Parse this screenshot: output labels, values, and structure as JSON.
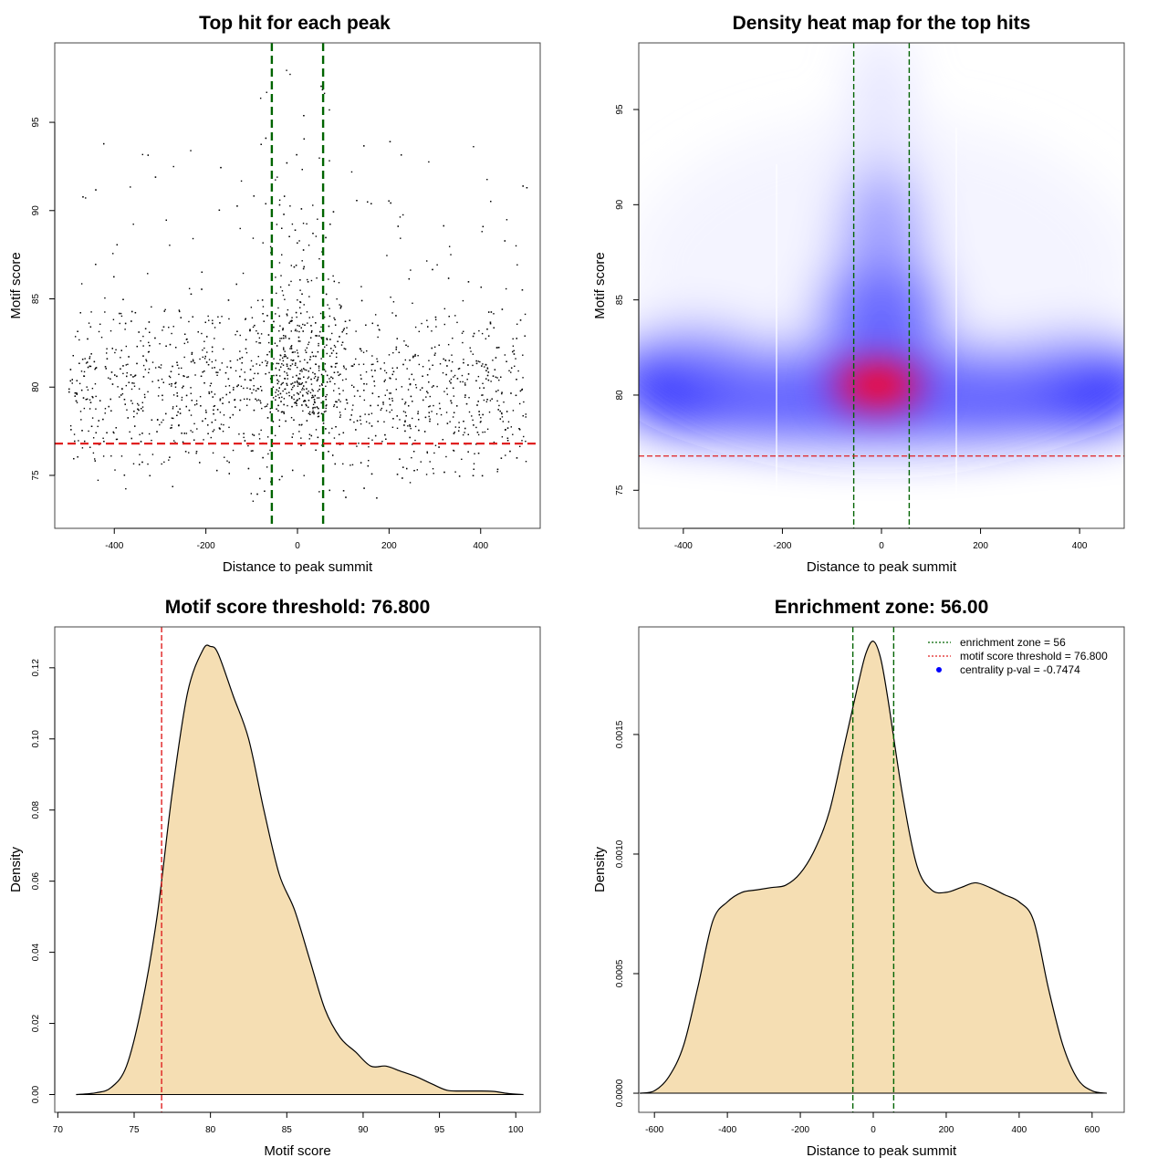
{
  "panels": [
    {
      "title": "Top hit for each peak",
      "xlabel": "Distance to peak summit",
      "ylabel": "Motif score"
    },
    {
      "title": "Density heat map for the top hits",
      "xlabel": "Distance to peak summit",
      "ylabel": "Motif score"
    },
    {
      "title": "Motif score threshold: 76.800",
      "xlabel": "Motif score",
      "ylabel": "Density"
    },
    {
      "title": "Enrichment zone: 56.00",
      "xlabel": "Distance to peak summit",
      "ylabel": "Density",
      "legend": [
        {
          "label": "enrichment zone = 56",
          "color": "#006400",
          "symbol": "dotted-line"
        },
        {
          "label": "motif score threshold = 76.800",
          "color": "#e02020",
          "symbol": "dotted-line"
        },
        {
          "label": "centrality p-val = -0.7474",
          "color": "#0000ff",
          "symbol": "dot"
        }
      ]
    }
  ],
  "colors": {
    "threshold_line": "#e02020",
    "zone_line": "#006400",
    "density_fill": "#f5deb3",
    "heat_low": "#0000ff",
    "heat_high": "#ff0000"
  },
  "chart_data": [
    {
      "type": "scatter",
      "title": "Top hit for each peak",
      "xlabel": "Distance to peak summit",
      "ylabel": "Motif score",
      "xlim": [
        -530,
        530
      ],
      "ylim": [
        72,
        99.5
      ],
      "x_ticks": [
        -400,
        -200,
        0,
        200,
        400
      ],
      "y_ticks": [
        75,
        80,
        85,
        90,
        95
      ],
      "n_points": 2400,
      "point_distribution": "uniform x over [-500, 500]; scores skewed, mode near 80; central (|x|<56) points reach higher scores up to ~98",
      "reference_lines": {
        "vertical": [
          -56,
          56
        ],
        "horizontal": [
          76.8
        ]
      },
      "grid": false
    },
    {
      "type": "heatmap",
      "title": "Density heat map for the top hits",
      "xlabel": "Distance to peak summit",
      "ylabel": "Motif score",
      "xlim": [
        -490,
        490
      ],
      "ylim": [
        73,
        98.5
      ],
      "x_ticks": [
        -400,
        -200,
        0,
        200,
        400
      ],
      "y_ticks": [
        75,
        80,
        85,
        90,
        95
      ],
      "hotspot": {
        "x": 0,
        "y": 80.5
      },
      "colormap": [
        "white",
        "blue",
        "red"
      ],
      "reference_lines": {
        "vertical": [
          -56,
          56
        ],
        "horizontal": [
          76.8
        ]
      },
      "grid": false
    },
    {
      "type": "area",
      "title": "Motif score threshold: 76.800",
      "xlabel": "Motif score",
      "ylabel": "Density",
      "xlim": [
        69.8,
        101.6
      ],
      "ylim": [
        -0.005,
        0.1315
      ],
      "x_ticks": [
        70,
        75,
        80,
        85,
        90,
        95,
        100
      ],
      "y_ticks": [
        0.0,
        0.02,
        0.04,
        0.06,
        0.08,
        0.1,
        0.12
      ],
      "y_tick_labels": [
        "0.00",
        "0.02",
        "0.04",
        "0.06",
        "0.08",
        "0.10",
        "0.12"
      ],
      "x": [
        71.2,
        72.5,
        73.5,
        74.5,
        75.5,
        76.5,
        77.5,
        78.5,
        79.5,
        80,
        80.5,
        81.5,
        82.5,
        83.5,
        84.5,
        85.5,
        86.5,
        87.5,
        88.5,
        89.5,
        90.5,
        91.5,
        92.5,
        93.5,
        94.5,
        95.5,
        96.5,
        97.5,
        98.5,
        99.5,
        100.5
      ],
      "y": [
        0.0,
        0.0005,
        0.002,
        0.008,
        0.025,
        0.05,
        0.085,
        0.113,
        0.125,
        0.126,
        0.124,
        0.112,
        0.1,
        0.08,
        0.062,
        0.052,
        0.038,
        0.024,
        0.016,
        0.012,
        0.008,
        0.008,
        0.0065,
        0.005,
        0.003,
        0.0012,
        0.001,
        0.001,
        0.0009,
        0.0003,
        0.0
      ],
      "reference_lines": {
        "vertical": [
          76.8
        ]
      },
      "grid": false
    },
    {
      "type": "area",
      "title": "Enrichment zone: 56.00",
      "xlabel": "Distance to peak summit",
      "ylabel": "Density",
      "xlim": [
        -643,
        688
      ],
      "ylim": [
        -8e-05,
        0.00195
      ],
      "x_ticks": [
        -600,
        -400,
        -200,
        0,
        200,
        400,
        600
      ],
      "y_ticks": [
        0.0,
        0.0005,
        0.001,
        0.0015
      ],
      "y_tick_labels": [
        "0.0000",
        "0.0005",
        "0.0010",
        "0.0015"
      ],
      "x": [
        -640,
        -600,
        -560,
        -520,
        -480,
        -440,
        -400,
        -360,
        -320,
        -280,
        -240,
        -200,
        -160,
        -120,
        -80,
        -40,
        -20,
        0,
        20,
        40,
        80,
        120,
        160,
        200,
        240,
        280,
        320,
        360,
        400,
        440,
        480,
        520,
        560,
        600,
        640
      ],
      "y": [
        0.0,
        1e-05,
        7e-05,
        0.0002,
        0.00045,
        0.00072,
        0.0008,
        0.00084,
        0.00085,
        0.00086,
        0.00087,
        0.00092,
        0.00102,
        0.00118,
        0.00145,
        0.00172,
        0.00184,
        0.00189,
        0.00182,
        0.00165,
        0.00125,
        0.00095,
        0.00085,
        0.00084,
        0.00086,
        0.00088,
        0.00086,
        0.00083,
        0.0008,
        0.00072,
        0.00044,
        0.0002,
        6e-05,
        1e-05,
        0.0
      ],
      "reference_lines": {
        "vertical": [
          -56,
          56
        ]
      },
      "legend_position": "top-right",
      "grid": false
    }
  ]
}
